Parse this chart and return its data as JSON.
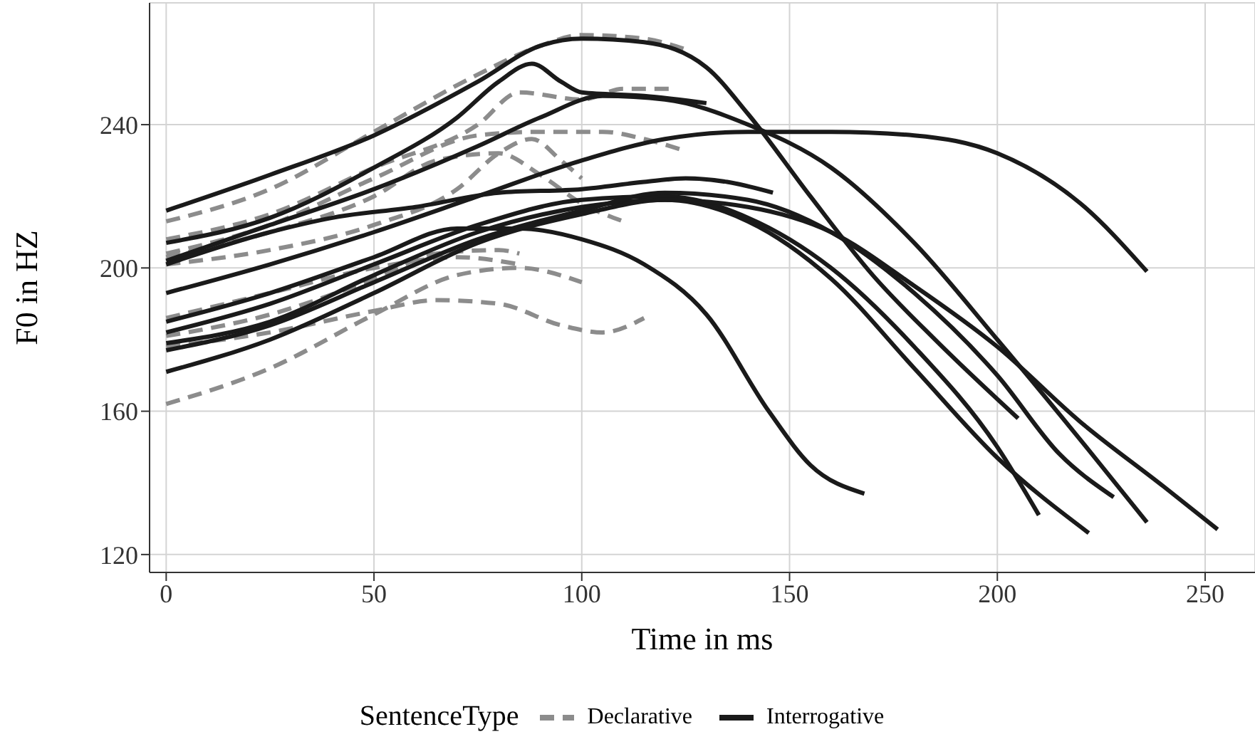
{
  "chart_data": {
    "type": "line",
    "xlabel": "Time in ms",
    "ylabel": "F0 in HZ",
    "legend_title": "SentenceType",
    "legend": "bottom",
    "grid": true,
    "marker": "none",
    "xlim": [
      -4,
      262
    ],
    "xticks": [
      0,
      50,
      100,
      150,
      200,
      250
    ],
    "ylim": [
      115,
      274
    ],
    "yticks": [
      120,
      160,
      200,
      240
    ],
    "series": [
      {
        "name": "Declarative",
        "color": "#8c8c8c",
        "line_style": "dashed",
        "x": [
          0,
          25,
          50,
          75,
          90,
          100,
          115,
          125
        ],
        "values": [
          213,
          222,
          238,
          254,
          262,
          265,
          264,
          261
        ]
      },
      {
        "color": "#8c8c8c",
        "line_style": "dashed",
        "x": [
          0,
          25,
          50,
          75,
          85,
          100,
          110,
          122
        ],
        "values": [
          208,
          215,
          228,
          240,
          249,
          247,
          250,
          250
        ]
      },
      {
        "color": "#8c8c8c",
        "line_style": "dashed",
        "x": [
          0,
          25,
          50,
          75,
          90,
          105,
          115,
          124
        ],
        "values": [
          204,
          212,
          225,
          237,
          238,
          238,
          236,
          233
        ]
      },
      {
        "color": "#8c8c8c",
        "line_style": "dashed",
        "x": [
          0,
          25,
          50,
          65,
          80,
          90,
          100,
          110
        ],
        "values": [
          203,
          210,
          220,
          230,
          232,
          226,
          218,
          213
        ]
      },
      {
        "color": "#8c8c8c",
        "line_style": "dashed",
        "x": [
          0,
          25,
          50,
          70,
          80,
          88,
          95,
          100
        ],
        "values": [
          201,
          205,
          212,
          222,
          232,
          236,
          230,
          225
        ]
      },
      {
        "color": "#8c8c8c",
        "line_style": "dashed",
        "x": [
          0,
          25,
          50,
          70,
          85
        ],
        "values": [
          186,
          193,
          200,
          203,
          201
        ]
      },
      {
        "color": "#8c8c8c",
        "line_style": "dashed",
        "x": [
          0,
          25,
          50,
          65,
          80,
          85
        ],
        "values": [
          181,
          187,
          197,
          204,
          205,
          204
        ]
      },
      {
        "color": "#8c8c8c",
        "line_style": "dashed",
        "x": [
          0,
          25,
          50,
          65,
          80,
          95,
          105,
          115
        ],
        "values": [
          178,
          182,
          188,
          191,
          190,
          184,
          182,
          186
        ]
      },
      {
        "color": "#8c8c8c",
        "line_style": "dashed",
        "x": [
          0,
          25,
          50,
          70,
          85,
          100
        ],
        "values": [
          162,
          172,
          187,
          198,
          200,
          196
        ]
      },
      {
        "name": "Interrogative",
        "color": "#1a1a1a",
        "line_style": "solid",
        "x": [
          0,
          25,
          50,
          75,
          90,
          100,
          115,
          130,
          140,
          155,
          170,
          185,
          205
        ],
        "values": [
          216,
          226,
          237,
          252,
          262,
          264,
          263,
          256,
          243,
          220,
          198,
          180,
          158
        ]
      },
      {
        "color": "#1a1a1a",
        "line_style": "solid",
        "x": [
          0,
          25,
          50,
          70,
          80,
          88,
          95,
          100,
          115,
          130
        ],
        "values": [
          207,
          214,
          228,
          242,
          252,
          257,
          252,
          249,
          248,
          246
        ]
      },
      {
        "color": "#1a1a1a",
        "line_style": "solid",
        "x": [
          0,
          25,
          50,
          75,
          90,
          105,
          120,
          140,
          160,
          180,
          200,
          220,
          236
        ],
        "values": [
          202,
          212,
          222,
          234,
          242,
          248,
          247,
          240,
          228,
          207,
          180,
          152,
          129
        ]
      },
      {
        "color": "#1a1a1a",
        "line_style": "solid",
        "x": [
          0,
          25,
          40,
          60,
          80,
          100,
          115,
          125,
          135,
          146
        ],
        "values": [
          201,
          210,
          214,
          217,
          221,
          222,
          224,
          225,
          224,
          221
        ]
      },
      {
        "color": "#1a1a1a",
        "line_style": "solid",
        "x": [
          0,
          25,
          50,
          75,
          100,
          120,
          140,
          160,
          180,
          200,
          220,
          236
        ],
        "values": [
          193,
          201,
          210,
          220,
          230,
          236,
          238,
          238,
          237,
          232,
          218,
          199
        ]
      },
      {
        "color": "#1a1a1a",
        "line_style": "solid",
        "x": [
          0,
          25,
          50,
          70,
          85,
          100,
          115,
          130,
          145,
          155,
          168
        ],
        "values": [
          185,
          193,
          203,
          211,
          211,
          208,
          201,
          187,
          160,
          145,
          137
        ]
      },
      {
        "color": "#1a1a1a",
        "line_style": "solid",
        "x": [
          0,
          25,
          50,
          75,
          100,
          120,
          140,
          160,
          180,
          200,
          210
        ],
        "values": [
          182,
          190,
          201,
          212,
          219,
          220,
          214,
          200,
          178,
          150,
          131
        ]
      },
      {
        "color": "#1a1a1a",
        "line_style": "solid",
        "x": [
          0,
          25,
          50,
          75,
          100,
          120,
          140,
          160,
          180,
          200,
          222
        ],
        "values": [
          179,
          185,
          198,
          210,
          217,
          219,
          213,
          197,
          172,
          147,
          126
        ]
      },
      {
        "color": "#1a1a1a",
        "line_style": "solid",
        "x": [
          0,
          25,
          50,
          75,
          100,
          120,
          140,
          160,
          180,
          200,
          215,
          228
        ],
        "values": [
          177,
          184,
          196,
          208,
          216,
          221,
          219,
          210,
          193,
          170,
          148,
          136
        ]
      },
      {
        "color": "#1a1a1a",
        "line_style": "solid",
        "x": [
          0,
          25,
          50,
          75,
          100,
          120,
          140,
          160,
          180,
          200,
          220,
          240,
          253
        ],
        "values": [
          171,
          180,
          193,
          207,
          215,
          219,
          217,
          210,
          195,
          178,
          157,
          139,
          127
        ]
      }
    ]
  }
}
